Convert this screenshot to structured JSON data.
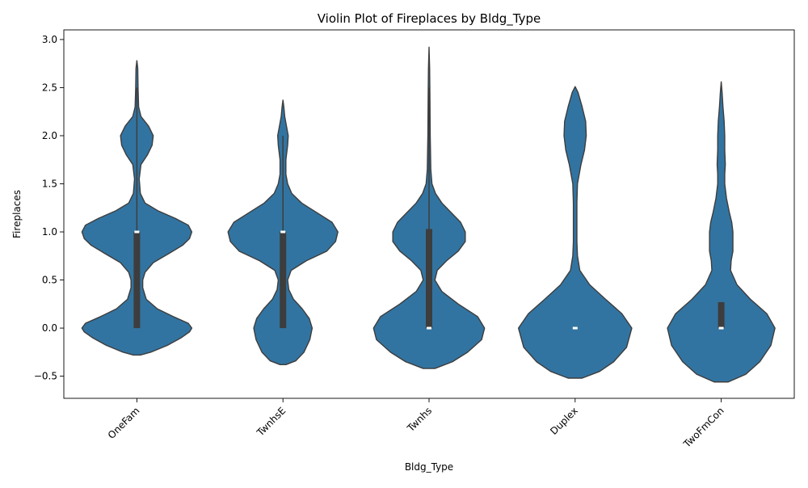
{
  "chart_data": {
    "type": "violin",
    "title": "Violin Plot of Fireplaces by Bldg_Type",
    "xlabel": "Bldg_Type",
    "ylabel": "Fireplaces",
    "ylim": [
      -0.73,
      3.1
    ],
    "yticks": [
      -0.5,
      0.0,
      0.5,
      1.0,
      1.5,
      2.0,
      2.5,
      3.0
    ],
    "ytick_labels": [
      "−0.5",
      "0.0",
      "0.5",
      "1.0",
      "1.5",
      "2.0",
      "2.5",
      "3.0"
    ],
    "categories": [
      "OneFam",
      "TwnhsE",
      "Twnhs",
      "Duplex",
      "TwoFmCon"
    ],
    "grid": false,
    "colors": {
      "violin_fill": "#3274a1",
      "violin_edge": "#3d3d3d",
      "box": "#3d3d3d",
      "median": "#ffffff"
    },
    "violins": [
      {
        "name": "OneFam",
        "y_min": -0.28,
        "y_max": 2.78,
        "profile": [
          [
            -0.28,
            0.06
          ],
          [
            -0.25,
            0.24
          ],
          [
            -0.18,
            0.52
          ],
          [
            -0.1,
            0.76
          ],
          [
            -0.04,
            0.9
          ],
          [
            0.0,
            0.94
          ],
          [
            0.05,
            0.88
          ],
          [
            0.12,
            0.62
          ],
          [
            0.2,
            0.35
          ],
          [
            0.3,
            0.16
          ],
          [
            0.42,
            0.1
          ],
          [
            0.5,
            0.1
          ],
          [
            0.58,
            0.14
          ],
          [
            0.68,
            0.28
          ],
          [
            0.78,
            0.56
          ],
          [
            0.86,
            0.78
          ],
          [
            0.93,
            0.9
          ],
          [
            1.0,
            0.94
          ],
          [
            1.07,
            0.88
          ],
          [
            1.14,
            0.66
          ],
          [
            1.22,
            0.36
          ],
          [
            1.3,
            0.14
          ],
          [
            1.4,
            0.06
          ],
          [
            1.55,
            0.04
          ],
          [
            1.7,
            0.07
          ],
          [
            1.8,
            0.18
          ],
          [
            1.9,
            0.26
          ],
          [
            2.0,
            0.28
          ],
          [
            2.1,
            0.2
          ],
          [
            2.2,
            0.07
          ],
          [
            2.3,
            0.03
          ],
          [
            2.5,
            0.02
          ],
          [
            2.7,
            0.015
          ],
          [
            2.78,
            0.0
          ]
        ],
        "q1": 0.0,
        "median": 1.0,
        "q3": 1.0,
        "whisker_low": 0.0,
        "whisker_high": 2.5
      },
      {
        "name": "TwnhsE",
        "y_min": -0.38,
        "y_max": 2.37,
        "profile": [
          [
            -0.38,
            0.05
          ],
          [
            -0.34,
            0.22
          ],
          [
            -0.25,
            0.36
          ],
          [
            -0.12,
            0.46
          ],
          [
            0.0,
            0.5
          ],
          [
            0.1,
            0.45
          ],
          [
            0.2,
            0.33
          ],
          [
            0.3,
            0.18
          ],
          [
            0.4,
            0.1
          ],
          [
            0.5,
            0.08
          ],
          [
            0.6,
            0.14
          ],
          [
            0.7,
            0.4
          ],
          [
            0.8,
            0.75
          ],
          [
            0.9,
            0.9
          ],
          [
            1.0,
            0.94
          ],
          [
            1.1,
            0.84
          ],
          [
            1.2,
            0.58
          ],
          [
            1.3,
            0.32
          ],
          [
            1.4,
            0.15
          ],
          [
            1.5,
            0.08
          ],
          [
            1.6,
            0.05
          ],
          [
            1.75,
            0.05
          ],
          [
            1.9,
            0.08
          ],
          [
            2.0,
            0.09
          ],
          [
            2.1,
            0.06
          ],
          [
            2.2,
            0.03
          ],
          [
            2.3,
            0.015
          ],
          [
            2.37,
            0.0
          ]
        ],
        "q1": 0.0,
        "median": 1.0,
        "q3": 1.0,
        "whisker_low": 0.0,
        "whisker_high": 2.0
      },
      {
        "name": "Twnhs",
        "y_min": -0.42,
        "y_max": 2.92,
        "profile": [
          [
            -0.42,
            0.1
          ],
          [
            -0.35,
            0.4
          ],
          [
            -0.25,
            0.66
          ],
          [
            -0.12,
            0.9
          ],
          [
            0.0,
            0.95
          ],
          [
            0.12,
            0.83
          ],
          [
            0.25,
            0.5
          ],
          [
            0.38,
            0.22
          ],
          [
            0.5,
            0.1
          ],
          [
            0.6,
            0.14
          ],
          [
            0.7,
            0.3
          ],
          [
            0.8,
            0.5
          ],
          [
            0.9,
            0.62
          ],
          [
            1.0,
            0.62
          ],
          [
            1.1,
            0.54
          ],
          [
            1.2,
            0.38
          ],
          [
            1.3,
            0.22
          ],
          [
            1.4,
            0.11
          ],
          [
            1.5,
            0.05
          ],
          [
            1.65,
            0.03
          ],
          [
            2.0,
            0.02
          ],
          [
            2.4,
            0.015
          ],
          [
            2.7,
            0.01
          ],
          [
            2.92,
            0.0
          ]
        ],
        "q1": 0.0,
        "median": 0.0,
        "q3": 1.03,
        "whisker_low": 0.0,
        "whisker_high": 2.5
      },
      {
        "name": "Duplex",
        "y_min": -0.52,
        "y_max": 2.51,
        "profile": [
          [
            -0.52,
            0.12
          ],
          [
            -0.45,
            0.42
          ],
          [
            -0.35,
            0.66
          ],
          [
            -0.2,
            0.88
          ],
          [
            0.0,
            0.97
          ],
          [
            0.15,
            0.8
          ],
          [
            0.3,
            0.52
          ],
          [
            0.45,
            0.25
          ],
          [
            0.6,
            0.08
          ],
          [
            0.75,
            0.04
          ],
          [
            0.9,
            0.03
          ],
          [
            1.1,
            0.03
          ],
          [
            1.3,
            0.03
          ],
          [
            1.5,
            0.04
          ],
          [
            1.7,
            0.1
          ],
          [
            1.85,
            0.16
          ],
          [
            2.0,
            0.19
          ],
          [
            2.15,
            0.18
          ],
          [
            2.3,
            0.12
          ],
          [
            2.45,
            0.05
          ],
          [
            2.51,
            0.0
          ]
        ],
        "q1": 0.0,
        "median": 0.0,
        "q3": 0.0,
        "whisker_low": 0.0,
        "whisker_high": 0.0
      },
      {
        "name": "TwoFmCon",
        "y_min": -0.56,
        "y_max": 2.56,
        "profile": [
          [
            -0.56,
            0.12
          ],
          [
            -0.48,
            0.42
          ],
          [
            -0.35,
            0.66
          ],
          [
            -0.18,
            0.85
          ],
          [
            0.0,
            0.92
          ],
          [
            0.15,
            0.78
          ],
          [
            0.3,
            0.5
          ],
          [
            0.45,
            0.27
          ],
          [
            0.6,
            0.16
          ],
          [
            0.7,
            0.17
          ],
          [
            0.8,
            0.2
          ],
          [
            0.9,
            0.2
          ],
          [
            1.0,
            0.2
          ],
          [
            1.1,
            0.18
          ],
          [
            1.2,
            0.14
          ],
          [
            1.35,
            0.09
          ],
          [
            1.5,
            0.06
          ],
          [
            1.6,
            0.06
          ],
          [
            1.7,
            0.07
          ],
          [
            1.85,
            0.06
          ],
          [
            2.0,
            0.06
          ],
          [
            2.15,
            0.05
          ],
          [
            2.3,
            0.03
          ],
          [
            2.45,
            0.015
          ],
          [
            2.56,
            0.0
          ]
        ],
        "q1": 0.0,
        "median": 0.0,
        "q3": 0.27,
        "whisker_low": 0.0,
        "whisker_high": 0.27
      }
    ]
  }
}
